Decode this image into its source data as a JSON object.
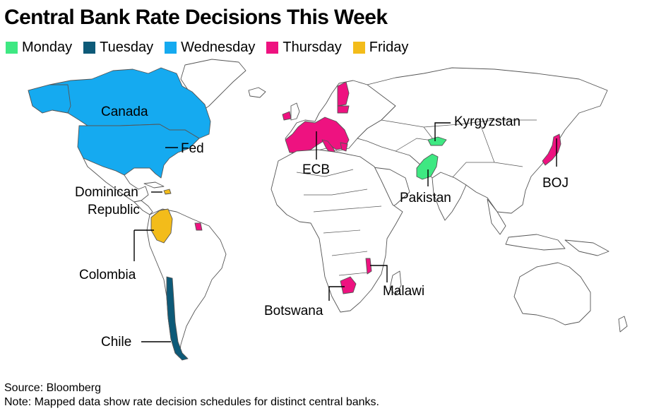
{
  "title": "Central Bank Rate Decisions This Week",
  "legend": [
    {
      "label": "Monday",
      "color": "#3ee882"
    },
    {
      "label": "Tuesday",
      "color": "#0d5a78"
    },
    {
      "label": "Wednesday",
      "color": "#15aaf0"
    },
    {
      "label": "Thursday",
      "color": "#ee1280"
    },
    {
      "label": "Friday",
      "color": "#f3bc1a"
    }
  ],
  "labels": {
    "canada": "Canada",
    "fed": "Fed",
    "dominican_line1": "Dominican",
    "dominican_line2": "Republic",
    "colombia": "Colombia",
    "chile": "Chile",
    "ecb": "ECB",
    "kyrgyzstan": "Kyrgyzstan",
    "pakistan": "Pakistan",
    "boj": "BOJ",
    "botswana": "Botswana",
    "malawi": "Malawi"
  },
  "footer": {
    "source": "Source: Bloomberg",
    "note": "Note: Mapped data show rate decision schedules for distinct central banks."
  }
}
